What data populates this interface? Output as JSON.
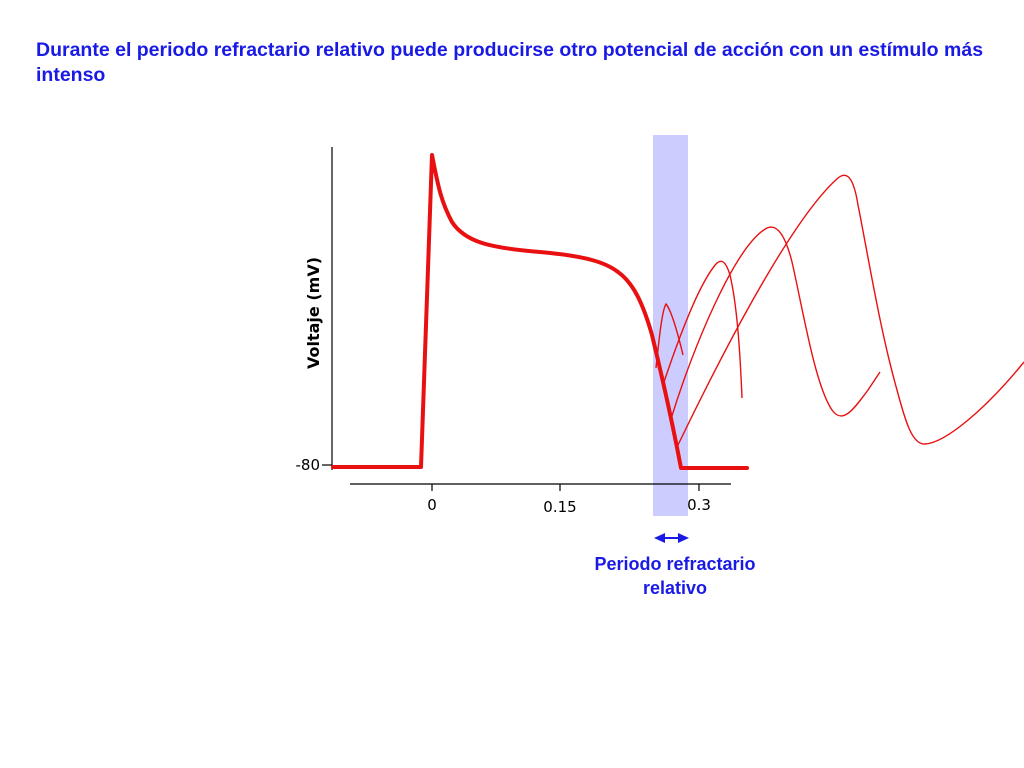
{
  "title": "Durante el periodo refractario relativo puede producirse otro potencial de acción con un estímulo más intenso",
  "y_axis_label": "Voltaje (mV)",
  "y_tick_label": "-80",
  "x_tick_labels": [
    "0",
    "0.15",
    "0.3"
  ],
  "band_caption": "Periodo refractario relativo",
  "colors": {
    "text_blue": "#1a1ae6",
    "curve_red": "#e81010",
    "band": "#ccccff",
    "arrow": "#1a1ae6",
    "axis": "#000000"
  }
}
